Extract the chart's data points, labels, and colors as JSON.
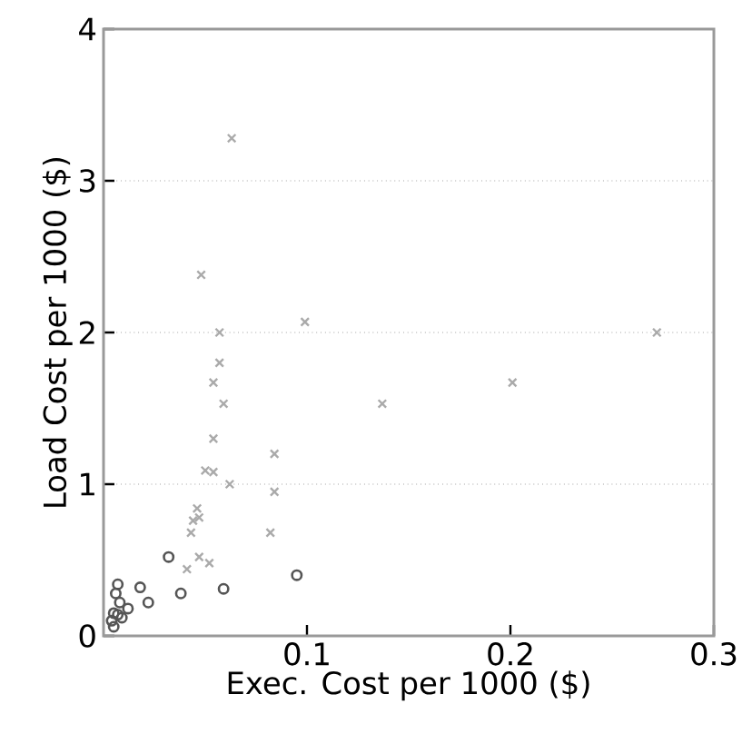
{
  "chart_data": {
    "type": "scatter",
    "xlabel": "Exec. Cost per 1000 ($)",
    "ylabel": "Load Cost per 1000 ($)",
    "xlim": [
      0,
      0.3
    ],
    "ylim": [
      0,
      4
    ],
    "xticks": [
      0.1,
      0.2,
      0.3
    ],
    "yticks": [
      0,
      1,
      2,
      3,
      4
    ],
    "grid": "y",
    "series": [
      {
        "color": "#555555",
        "marker": "circle",
        "x": [
          0.032,
          0.038,
          0.059,
          0.095,
          0.022,
          0.018,
          0.007,
          0.006,
          0.012,
          0.005,
          0.008,
          0.004,
          0.006,
          0.009,
          0.005,
          0.007
        ],
        "values": [
          0.52,
          0.28,
          0.31,
          0.4,
          0.22,
          0.32,
          0.34,
          0.28,
          0.18,
          0.15,
          0.22,
          0.1,
          null,
          0.12,
          0.06,
          0.14
        ]
      },
      {
        "color": "#aaaaaa",
        "marker": "cross",
        "x": [
          0.063,
          0.048,
          0.099,
          0.057,
          0.272,
          0.201,
          0.137,
          0.057,
          0.054,
          0.059,
          0.054,
          0.084,
          0.05,
          0.054,
          0.062,
          0.084,
          0.046,
          0.044,
          0.047,
          0.043,
          0.082,
          0.047,
          0.052,
          0.041
        ],
        "values": [
          3.28,
          2.38,
          2.07,
          2.0,
          2.0,
          1.67,
          1.53,
          1.8,
          1.67,
          1.53,
          1.3,
          1.2,
          1.09,
          1.08,
          1.0,
          0.95,
          0.84,
          0.76,
          0.78,
          0.68,
          0.68,
          0.52,
          0.48,
          0.44
        ]
      }
    ]
  }
}
